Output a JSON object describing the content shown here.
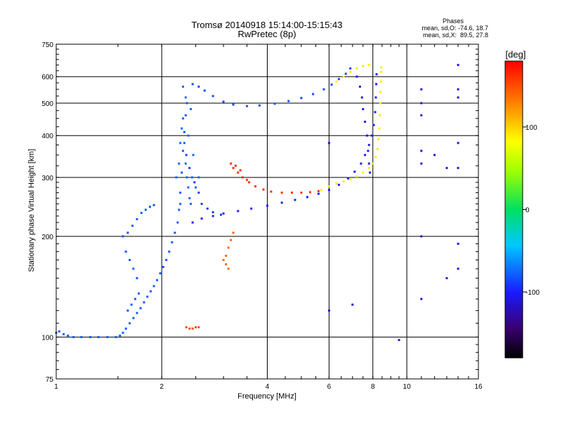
{
  "chart_data": {
    "type": "scatter",
    "title": "Tromsø 20140918 15:14:00-15:15:43",
    "subtitle": "RwPretec (8p)",
    "xlabel": "Frequency [MHz]",
    "ylabel": "Stationary phase Virtual Height [km]",
    "x_scale": "log",
    "y_scale": "log",
    "xlim": [
      1,
      16
    ],
    "ylim": [
      75,
      750
    ],
    "x_ticks": [
      1,
      2,
      4,
      6,
      8,
      10,
      16
    ],
    "x_tick_labels": [
      "1",
      "2",
      "4",
      "6",
      "8",
      "10",
      "16"
    ],
    "y_ticks": [
      75,
      100,
      200,
      300,
      400,
      500,
      600,
      750
    ],
    "y_tick_labels": [
      "75",
      "100",
      "200",
      "300",
      "400",
      "500",
      "600",
      "750"
    ],
    "grid": true,
    "phases_box": {
      "title": "Phases",
      "line_o": "mean, sd,O: -74.6, 18.7",
      "line_x": "mean, sd,X:  89.5, 27.8"
    },
    "colorbar": {
      "label": "[deg]",
      "range": [
        -180,
        180
      ],
      "ticks": [
        100,
        0,
        -100
      ],
      "tick_labels": [
        "100",
        "0",
        "-100"
      ]
    },
    "series": [
      {
        "points": [
          [
            1.0,
            103
          ],
          [
            1.02,
            104
          ],
          [
            1.05,
            102
          ],
          [
            1.08,
            101
          ],
          [
            1.12,
            100
          ],
          [
            1.18,
            100
          ],
          [
            1.25,
            100
          ],
          [
            1.32,
            100
          ],
          [
            1.4,
            100
          ],
          [
            1.48,
            100
          ],
          [
            1.52,
            101
          ],
          [
            1.55,
            103
          ],
          [
            1.58,
            106
          ],
          [
            1.62,
            110
          ],
          [
            1.66,
            114
          ],
          [
            1.7,
            118
          ],
          [
            1.74,
            122
          ],
          [
            1.78,
            127
          ],
          [
            1.82,
            132
          ],
          [
            1.86,
            137
          ],
          [
            1.9,
            142
          ],
          [
            1.94,
            148
          ],
          [
            1.98,
            155
          ],
          [
            2.02,
            162
          ],
          [
            2.06,
            170
          ],
          [
            2.1,
            180
          ],
          [
            2.14,
            192
          ],
          [
            2.18,
            205
          ],
          [
            2.22,
            220
          ],
          [
            2.24,
            240
          ],
          [
            2.26,
            270
          ],
          [
            2.28,
            310
          ],
          [
            2.3,
            360
          ],
          [
            2.32,
            410
          ],
          [
            2.34,
            460
          ],
          [
            2.36,
            500
          ]
        ],
        "phase": -80
      },
      {
        "points": [
          [
            2.2,
            300
          ],
          [
            2.24,
            330
          ],
          [
            2.26,
            380
          ],
          [
            2.28,
            420
          ],
          [
            2.3,
            450
          ],
          [
            2.32,
            380
          ],
          [
            2.34,
            330
          ],
          [
            2.36,
            300
          ],
          [
            2.38,
            280
          ],
          [
            2.4,
            260
          ],
          [
            2.42,
            250
          ],
          [
            2.44,
            300
          ],
          [
            2.46,
            350
          ],
          [
            2.38,
            400
          ],
          [
            2.34,
            520
          ],
          [
            2.3,
            560
          ],
          [
            2.42,
            480
          ],
          [
            2.26,
            250
          ],
          [
            2.5,
            280
          ],
          [
            2.55,
            300
          ]
        ],
        "phase": -75
      },
      {
        "points": [
          [
            1.55,
            200
          ],
          [
            1.6,
            205
          ],
          [
            1.65,
            215
          ],
          [
            1.7,
            225
          ],
          [
            1.75,
            235
          ],
          [
            1.8,
            240
          ],
          [
            1.85,
            245
          ],
          [
            1.9,
            248
          ],
          [
            1.58,
            180
          ],
          [
            1.62,
            170
          ],
          [
            1.66,
            160
          ],
          [
            1.7,
            150
          ],
          [
            1.6,
            120
          ],
          [
            1.64,
            125
          ],
          [
            1.68,
            130
          ],
          [
            1.72,
            135
          ]
        ],
        "phase": -80
      },
      {
        "points": [
          [
            2.45,
            220
          ],
          [
            2.6,
            226
          ],
          [
            2.8,
            230
          ],
          [
            3.0,
            234
          ],
          [
            3.3,
            238
          ],
          [
            3.6,
            242
          ],
          [
            4.0,
            247
          ],
          [
            4.4,
            252
          ],
          [
            4.8,
            257
          ],
          [
            5.2,
            262
          ],
          [
            5.6,
            268
          ],
          [
            6.0,
            275
          ],
          [
            6.4,
            285
          ],
          [
            6.8,
            298
          ],
          [
            7.1,
            312
          ],
          [
            7.4,
            330
          ],
          [
            7.6,
            350
          ],
          [
            7.8,
            375
          ],
          [
            7.95,
            400
          ],
          [
            8.05,
            430
          ],
          [
            8.12,
            470
          ],
          [
            8.16,
            520
          ],
          [
            8.18,
            570
          ],
          [
            8.2,
            610
          ]
        ],
        "phase": -100
      },
      {
        "points": [
          [
            2.6,
            250
          ],
          [
            2.7,
            242
          ],
          [
            2.8,
            236
          ],
          [
            2.95,
            232
          ],
          [
            2.48,
            290
          ],
          [
            2.55,
            270
          ],
          [
            2.4,
            320
          ],
          [
            2.35,
            350
          ]
        ],
        "phase": -90
      },
      {
        "points": [
          [
            2.45,
            570
          ],
          [
            2.55,
            560
          ],
          [
            2.65,
            545
          ],
          [
            2.8,
            525
          ],
          [
            3.0,
            505
          ],
          [
            3.2,
            495
          ],
          [
            3.5,
            490
          ],
          [
            3.8,
            492
          ],
          [
            4.2,
            498
          ],
          [
            4.6,
            507
          ],
          [
            5.0,
            518
          ],
          [
            5.4,
            532
          ],
          [
            5.8,
            550
          ],
          [
            6.1,
            568
          ],
          [
            6.4,
            590
          ],
          [
            6.7,
            612
          ],
          [
            6.9,
            635
          ]
        ],
        "phase": -85
      },
      {
        "points": [
          [
            3.2,
            320
          ],
          [
            3.3,
            310
          ],
          [
            3.4,
            300
          ],
          [
            3.55,
            290
          ],
          [
            3.7,
            282
          ],
          [
            3.9,
            276
          ],
          [
            4.1,
            272
          ],
          [
            4.4,
            270
          ],
          [
            4.7,
            270
          ],
          [
            5.0,
            270
          ],
          [
            5.3,
            271
          ],
          [
            5.6,
            273
          ],
          [
            3.15,
            330
          ],
          [
            3.25,
            325
          ],
          [
            3.35,
            315
          ],
          [
            3.5,
            295
          ]
        ],
        "phase": 160
      },
      {
        "points": [
          [
            3.0,
            170
          ],
          [
            3.05,
            175
          ],
          [
            3.1,
            185
          ],
          [
            3.15,
            195
          ],
          [
            3.2,
            205
          ],
          [
            3.1,
            160
          ],
          [
            3.05,
            165
          ]
        ],
        "phase": 140
      },
      {
        "points": [
          [
            2.35,
            107
          ],
          [
            2.4,
            106
          ],
          [
            2.45,
            106
          ],
          [
            2.5,
            107
          ],
          [
            2.55,
            107
          ]
        ],
        "phase": 150
      },
      {
        "points": [
          [
            5.7,
            275
          ],
          [
            6.0,
            282
          ],
          [
            6.3,
            288
          ],
          [
            6.6,
            292
          ],
          [
            6.9,
            296
          ],
          [
            7.2,
            302
          ],
          [
            7.5,
            310
          ],
          [
            7.8,
            320
          ],
          [
            8.0,
            330
          ],
          [
            8.15,
            345
          ],
          [
            8.25,
            365
          ],
          [
            8.3,
            390
          ],
          [
            8.35,
            420
          ],
          [
            8.38,
            460
          ],
          [
            8.4,
            500
          ],
          [
            8.42,
            540
          ],
          [
            8.44,
            580
          ],
          [
            8.45,
            620
          ],
          [
            8.46,
            640
          ],
          [
            6.3,
            580
          ],
          [
            6.6,
            600
          ],
          [
            6.9,
            620
          ],
          [
            7.2,
            635
          ],
          [
            7.5,
            645
          ],
          [
            7.8,
            650
          ]
        ],
        "phase": 90
      },
      {
        "points": [
          [
            7.2,
            600
          ],
          [
            7.35,
            560
          ],
          [
            7.45,
            520
          ],
          [
            7.5,
            480
          ],
          [
            7.6,
            440
          ],
          [
            7.7,
            400
          ],
          [
            7.75,
            360
          ],
          [
            7.8,
            330
          ],
          [
            7.85,
            310
          ]
        ],
        "phase": -100
      },
      {
        "points": [
          [
            11.0,
            550
          ],
          [
            11.0,
            500
          ],
          [
            11.0,
            460
          ],
          [
            11.0,
            360
          ],
          [
            11.0,
            330
          ],
          [
            11.0,
            200
          ],
          [
            11.0,
            130
          ],
          [
            12.0,
            350
          ],
          [
            13.0,
            320
          ],
          [
            13.0,
            150
          ],
          [
            14.0,
            650
          ],
          [
            14.0,
            550
          ],
          [
            14.0,
            520
          ],
          [
            14.0,
            380
          ],
          [
            14.0,
            320
          ],
          [
            14.0,
            190
          ],
          [
            14.0,
            160
          ],
          [
            6.0,
            380
          ],
          [
            6.0,
            120
          ],
          [
            7.0,
            125
          ],
          [
            9.5,
            98
          ]
        ],
        "phase": -110
      }
    ]
  }
}
